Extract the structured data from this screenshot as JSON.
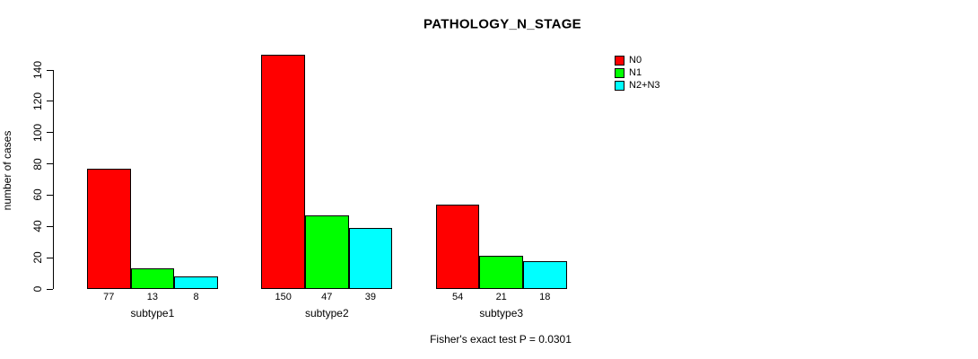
{
  "chart_data": {
    "type": "bar",
    "title": "PATHOLOGY_N_STAGE",
    "xlabel": "",
    "ylabel": "number of cases",
    "categories": [
      "subtype1",
      "subtype2",
      "subtype3"
    ],
    "series": [
      {
        "name": "N0",
        "color": "#ff0000",
        "values": [
          77,
          150,
          54
        ]
      },
      {
        "name": "N1",
        "color": "#00ff00",
        "values": [
          13,
          47,
          21
        ]
      },
      {
        "name": "N2+N3",
        "color": "#00ffff",
        "values": [
          8,
          39,
          18
        ]
      }
    ],
    "yticks": [
      0,
      20,
      40,
      60,
      80,
      100,
      120,
      140
    ],
    "ylim": [
      0,
      157
    ],
    "grid": false,
    "bar_value_labels_shown": true,
    "legend": {
      "position": "top-right",
      "entries": [
        "N0",
        "N1",
        "N2+N3"
      ]
    },
    "annotation": "Fisher's exact test P = 0.0301",
    "colors": {
      "N0": "#ff0000",
      "N1": "#00ff00",
      "N2+N3": "#00ffff",
      "axis": "#000000",
      "background": "#ffffff"
    }
  }
}
